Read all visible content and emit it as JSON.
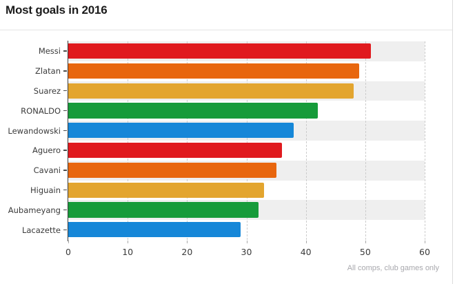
{
  "page": {
    "title": "Most goals in 2016",
    "footnote": "All comps, club games only"
  },
  "chart_data": {
    "type": "bar",
    "orientation": "horizontal",
    "title": "Most goals in 2016",
    "annotation": "All comps, club games only",
    "categories": [
      "Messi",
      "Zlatan",
      "Suarez",
      "RONALDO",
      "Lewandowski",
      "Aguero",
      "Cavani",
      "Higuain",
      "Aubameyang",
      "Lacazette"
    ],
    "values": [
      51,
      49,
      48,
      42,
      38,
      36,
      35,
      33,
      32,
      29
    ],
    "bar_colors": [
      "#e01a1e",
      "#e8660e",
      "#e3a52f",
      "#169b3a",
      "#1687d8",
      "#e01a1e",
      "#e8660e",
      "#e3a52f",
      "#169b3a",
      "#1687d8"
    ],
    "xlabel": "",
    "ylabel": "",
    "xlim": [
      0,
      60
    ],
    "x_ticks": [
      0,
      10,
      20,
      30,
      40,
      50,
      60
    ],
    "grid": "vertical-dashed",
    "legend": "none",
    "row_stripe_colors": [
      "#efefef",
      "#ffffff"
    ],
    "colors": {
      "axis": "#3a3a3a",
      "gridline": "#cccccc",
      "tick_label": "#3a3a3a",
      "title": "#1b1b1b",
      "footnote": "#a8a8ad"
    }
  }
}
